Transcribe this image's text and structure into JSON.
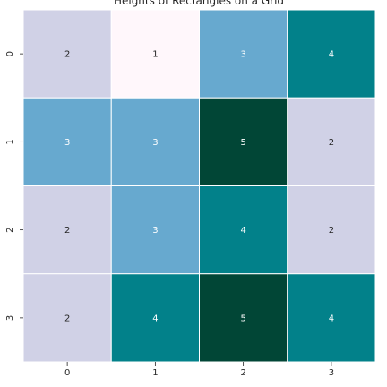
{
  "chart_data": {
    "type": "heatmap",
    "title": "Heights of Rectangles on a Grid",
    "xlabel": "",
    "ylabel": "",
    "x_tick_labels": [
      "0",
      "1",
      "2",
      "3"
    ],
    "y_tick_labels": [
      "0",
      "1",
      "2",
      "3"
    ],
    "values": [
      [
        2,
        1,
        3,
        4
      ],
      [
        3,
        3,
        5,
        2
      ],
      [
        2,
        3,
        4,
        2
      ],
      [
        2,
        4,
        5,
        4
      ]
    ],
    "value_labels": [
      [
        "2",
        "1",
        "3",
        "4"
      ],
      [
        "3",
        "3",
        "5",
        "2"
      ],
      [
        "2",
        "3",
        "4",
        "2"
      ],
      [
        "2",
        "4",
        "5",
        "4"
      ]
    ],
    "color_scale": {
      "1": "#fff7fb",
      "2": "#d0d1e6",
      "3": "#67a9cf",
      "4": "#02818a",
      "5": "#014636"
    },
    "label_colors": {
      "light": "#262626",
      "dark": "#ffffff"
    },
    "grid_line_color": "#ffffff",
    "colorbar": false
  }
}
